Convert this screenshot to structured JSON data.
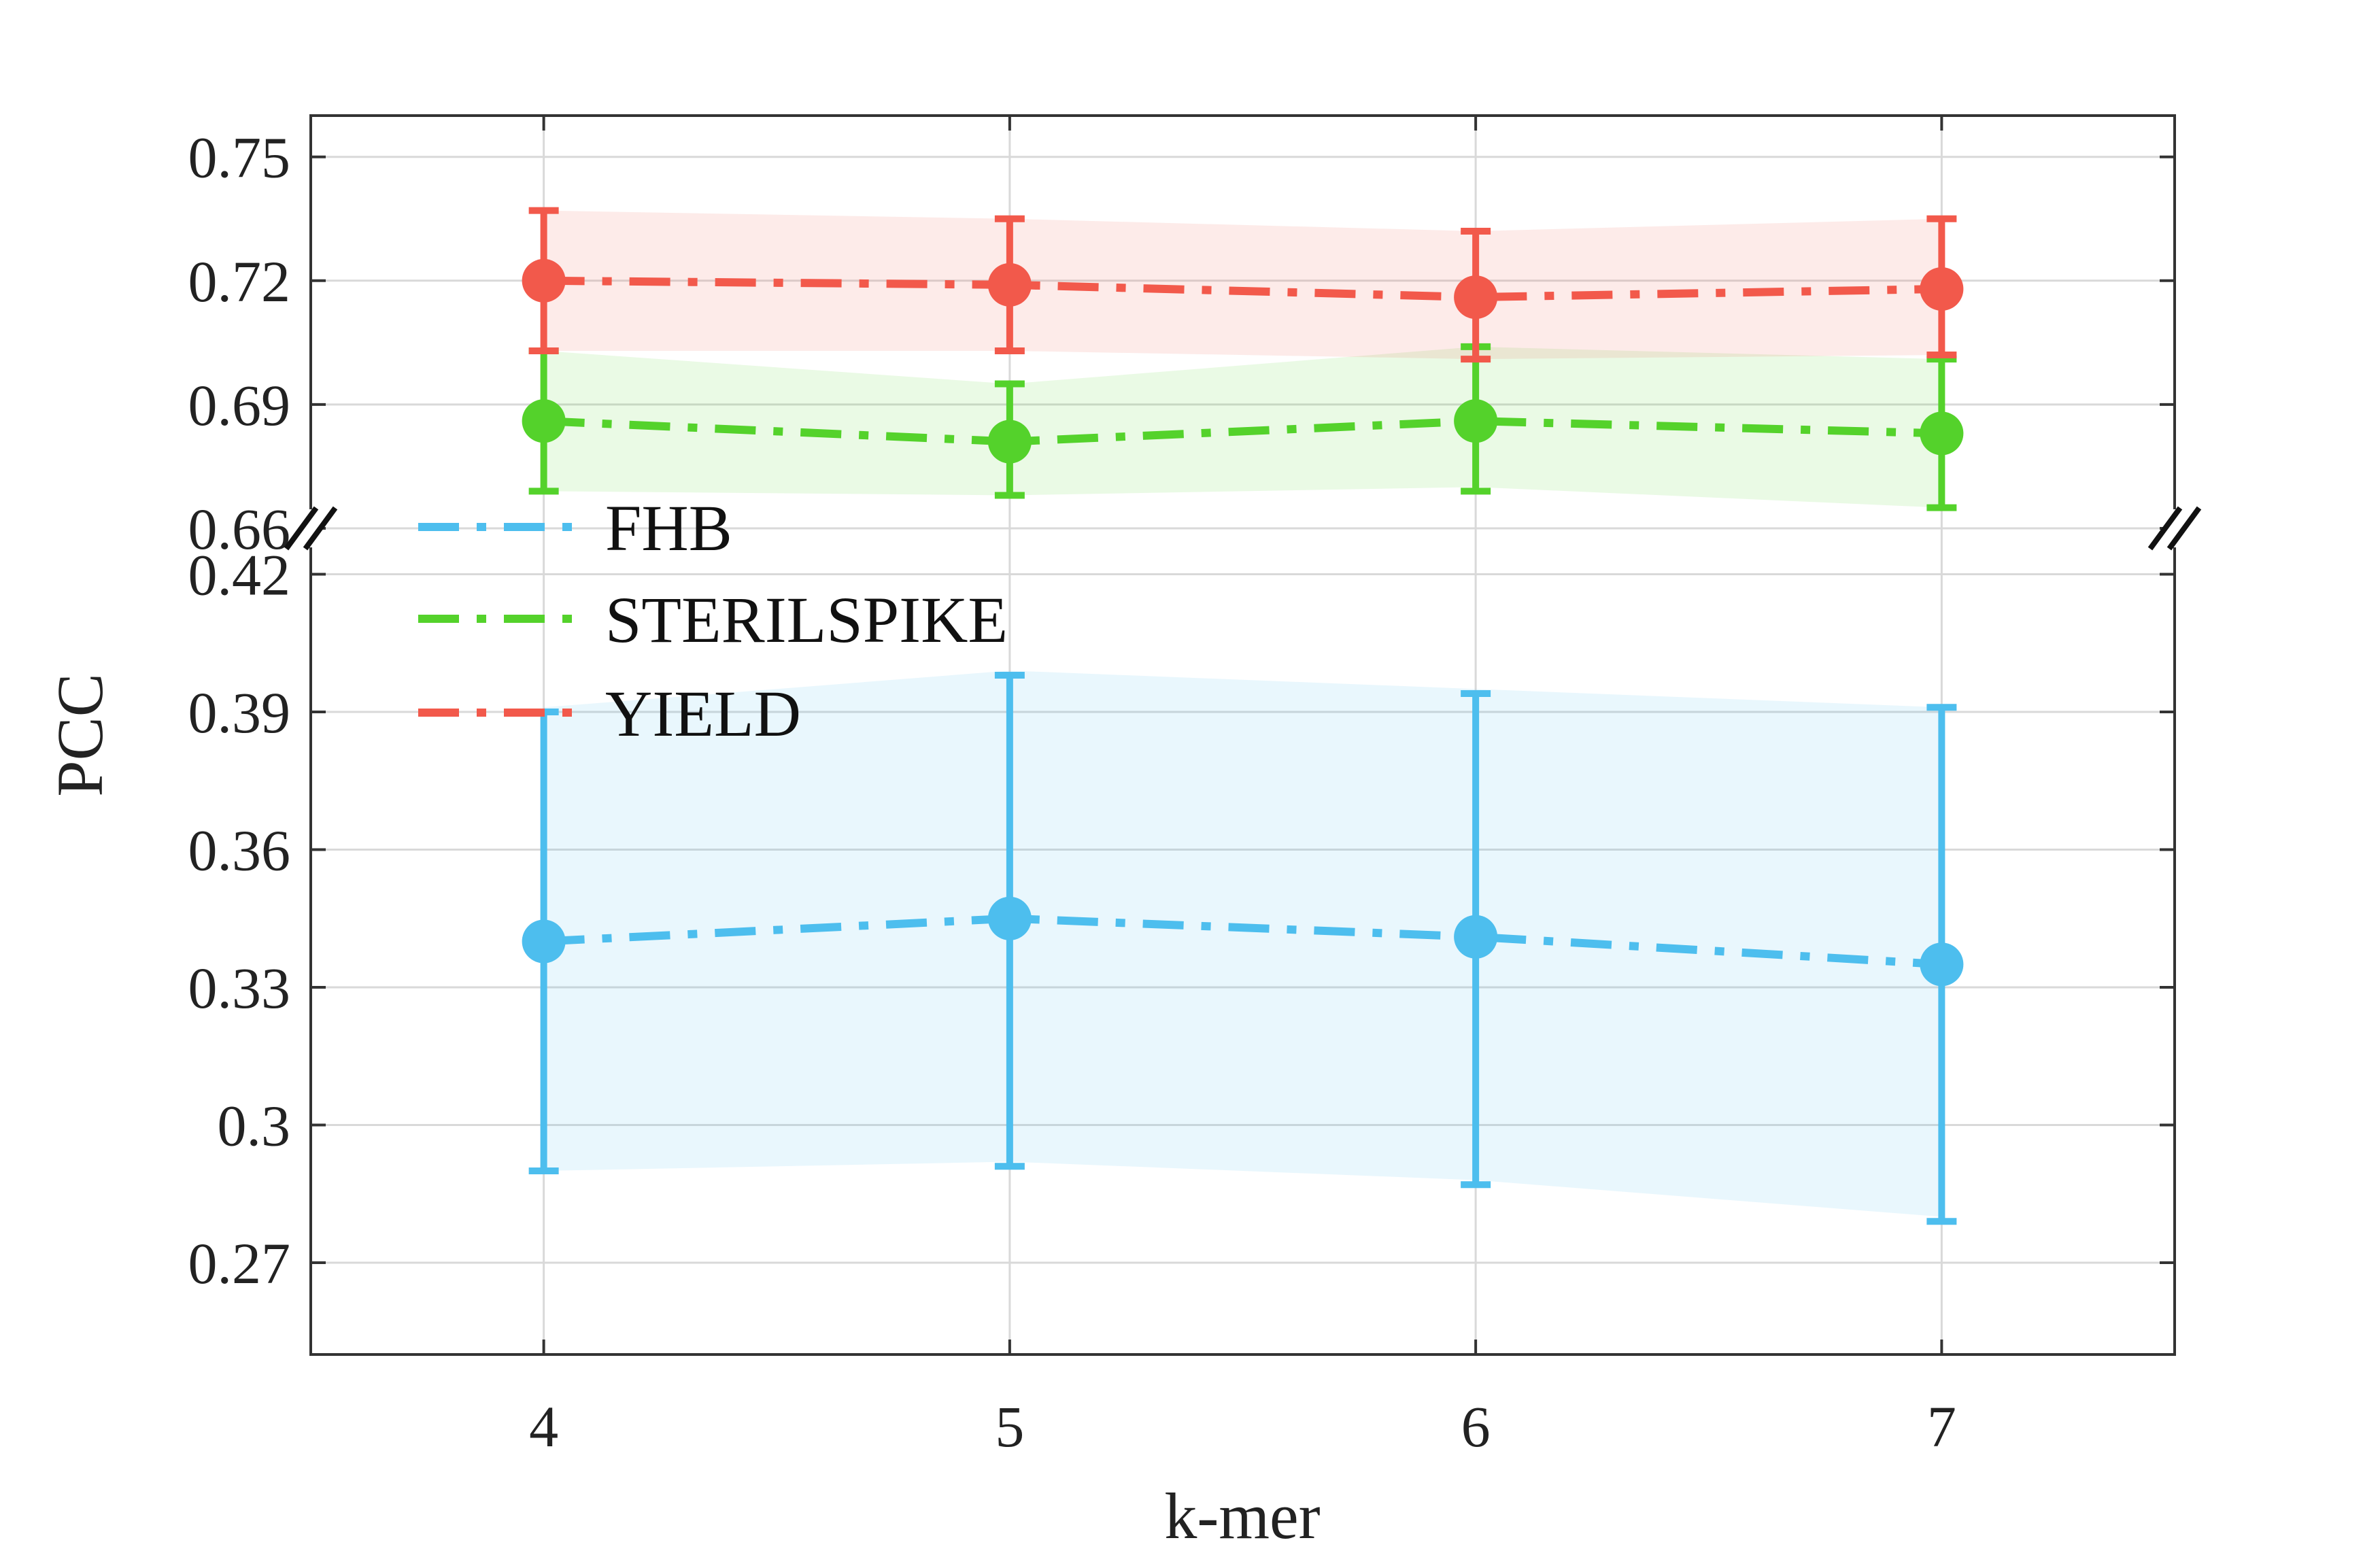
{
  "chart_data": {
    "type": "line",
    "title": "",
    "xlabel": "k-mer",
    "ylabel": "PCC",
    "x": [
      4,
      5,
      6,
      7
    ],
    "x_tick_labels": [
      "4",
      "5",
      "6",
      "7"
    ],
    "xlim": [
      3.5,
      7.5
    ],
    "broken_y_axis": true,
    "y_segments": [
      {
        "range": [
          0.25,
          0.43
        ],
        "ticks": [
          0.27,
          0.3,
          0.33,
          0.36,
          0.39,
          0.42
        ],
        "tick_labels": [
          "0.27",
          "0.3",
          "0.33",
          "0.36",
          "0.39",
          "0.42"
        ]
      },
      {
        "range": [
          0.66,
          0.76
        ],
        "ticks": [
          0.66,
          0.69,
          0.72,
          0.75
        ],
        "tick_labels": [
          "0.66",
          "0.69",
          "0.72",
          "0.75"
        ]
      }
    ],
    "grid": true,
    "legend_position": "center-left",
    "series": [
      {
        "name": "FHB",
        "color": "#4DBEEE",
        "segment": 0,
        "values": [
          0.34,
          0.345,
          0.341,
          0.335
        ],
        "err_low": [
          0.29,
          0.291,
          0.287,
          0.279
        ],
        "err_high": [
          0.39,
          0.398,
          0.394,
          0.391
        ],
        "band_low": [
          0.29,
          0.292,
          0.288,
          0.28
        ],
        "band_high": [
          0.391,
          0.399,
          0.395,
          0.391
        ]
      },
      {
        "name": "STERILSPIKE",
        "color": "#54D22B",
        "segment": 1,
        "values": [
          0.686,
          0.681,
          0.686,
          0.683
        ],
        "err_low": [
          0.669,
          0.668,
          0.669,
          0.665
        ],
        "err_high": [
          0.703,
          0.695,
          0.704,
          0.701
        ],
        "band_low": [
          0.669,
          0.668,
          0.67,
          0.665
        ],
        "band_high": [
          0.703,
          0.695,
          0.704,
          0.701
        ]
      },
      {
        "name": "YIELD",
        "color": "#F2594B",
        "segment": 1,
        "values": [
          0.72,
          0.719,
          0.716,
          0.718
        ],
        "err_low": [
          0.703,
          0.703,
          0.701,
          0.702
        ],
        "err_high": [
          0.737,
          0.735,
          0.732,
          0.735
        ],
        "band_low": [
          0.703,
          0.703,
          0.701,
          0.702
        ],
        "band_high": [
          0.737,
          0.735,
          0.732,
          0.735
        ]
      }
    ]
  }
}
